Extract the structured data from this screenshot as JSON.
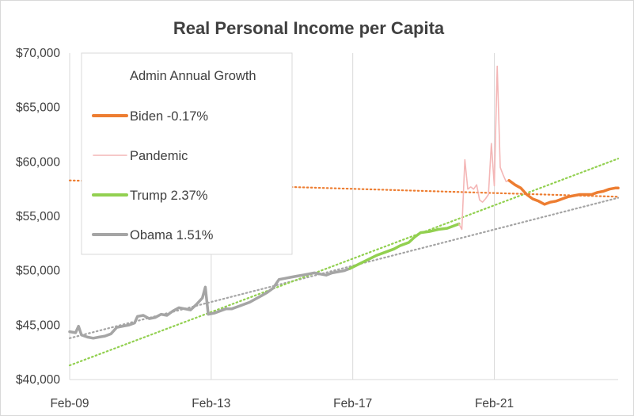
{
  "chart_data": {
    "type": "line",
    "title": "Real Personal Income per Capita",
    "xlabel": "",
    "ylabel": "",
    "x_axis": {
      "type": "date",
      "range": [
        "2009-02",
        "2024-08"
      ],
      "ticks": [
        "Feb-09",
        "Feb-13",
        "Feb-17",
        "Feb-21"
      ]
    },
    "y_axis": {
      "range": [
        40000,
        70000
      ],
      "step": 5000,
      "ticks": [
        "$40,000",
        "$45,000",
        "$50,000",
        "$55,000",
        "$60,000",
        "$65,000",
        "$70,000"
      ]
    },
    "grid": {
      "vertical": true,
      "horizontal": false
    },
    "legend": {
      "title": "Admin Annual Growth",
      "placement": "top-left",
      "entries": [
        "Biden -0.17%",
        "Pandemic",
        "Trump 2.37%",
        "Obama 1.51%"
      ]
    },
    "series": [
      {
        "name": "Obama 1.51%",
        "color": "#a5a5a5",
        "points": [
          [
            "2009-02",
            44400
          ],
          [
            "2009-04",
            44300
          ],
          [
            "2009-05",
            44900
          ],
          [
            "2009-06",
            44100
          ],
          [
            "2009-08",
            43900
          ],
          [
            "2009-10",
            43800
          ],
          [
            "2009-12",
            43900
          ],
          [
            "2010-02",
            44000
          ],
          [
            "2010-04",
            44200
          ],
          [
            "2010-06",
            44800
          ],
          [
            "2010-08",
            44900
          ],
          [
            "2010-10",
            45000
          ],
          [
            "2010-12",
            45200
          ],
          [
            "2011-01",
            45800
          ],
          [
            "2011-03",
            45900
          ],
          [
            "2011-05",
            45600
          ],
          [
            "2011-07",
            45700
          ],
          [
            "2011-09",
            46000
          ],
          [
            "2011-11",
            45900
          ],
          [
            "2012-01",
            46300
          ],
          [
            "2012-03",
            46600
          ],
          [
            "2012-05",
            46500
          ],
          [
            "2012-07",
            46400
          ],
          [
            "2012-09",
            46900
          ],
          [
            "2012-11",
            47500
          ],
          [
            "2012-12",
            48500
          ],
          [
            "2013-01",
            46000
          ],
          [
            "2013-03",
            46100
          ],
          [
            "2013-05",
            46300
          ],
          [
            "2013-07",
            46500
          ],
          [
            "2013-09",
            46500
          ],
          [
            "2013-11",
            46700
          ],
          [
            "2014-01",
            46900
          ],
          [
            "2014-03",
            47100
          ],
          [
            "2014-05",
            47400
          ],
          [
            "2014-07",
            47700
          ],
          [
            "2014-09",
            48000
          ],
          [
            "2014-11",
            48400
          ],
          [
            "2015-01",
            49200
          ],
          [
            "2015-03",
            49300
          ],
          [
            "2015-05",
            49400
          ],
          [
            "2015-07",
            49500
          ],
          [
            "2015-09",
            49600
          ],
          [
            "2015-11",
            49700
          ],
          [
            "2016-01",
            49800
          ],
          [
            "2016-03",
            49700
          ],
          [
            "2016-05",
            49600
          ],
          [
            "2016-07",
            49800
          ],
          [
            "2016-09",
            49900
          ],
          [
            "2016-11",
            50000
          ],
          [
            "2017-01",
            50200
          ]
        ]
      },
      {
        "name": "Trump 2.37%",
        "color": "#92d050",
        "points": [
          [
            "2017-01",
            50200
          ],
          [
            "2017-04",
            50600
          ],
          [
            "2017-07",
            51000
          ],
          [
            "2017-10",
            51400
          ],
          [
            "2018-01",
            51700
          ],
          [
            "2018-04",
            52000
          ],
          [
            "2018-06",
            52300
          ],
          [
            "2018-09",
            52600
          ],
          [
            "2018-11",
            53100
          ],
          [
            "2019-01",
            53500
          ],
          [
            "2019-04",
            53600
          ],
          [
            "2019-07",
            53800
          ],
          [
            "2019-10",
            53900
          ],
          [
            "2019-12",
            54100
          ],
          [
            "2020-02",
            54300
          ]
        ]
      },
      {
        "name": "Pandemic",
        "color": "#f4b6b6",
        "points": [
          [
            "2020-02",
            54300
          ],
          [
            "2020-03",
            53800
          ],
          [
            "2020-04",
            60200
          ],
          [
            "2020-05",
            57500
          ],
          [
            "2020-06",
            57700
          ],
          [
            "2020-07",
            57500
          ],
          [
            "2020-08",
            57900
          ],
          [
            "2020-09",
            56500
          ],
          [
            "2020-10",
            56300
          ],
          [
            "2020-11",
            56600
          ],
          [
            "2020-12",
            57000
          ],
          [
            "2021-01",
            61700
          ],
          [
            "2021-02",
            57800
          ],
          [
            "2021-03",
            68800
          ],
          [
            "2021-04",
            59500
          ],
          [
            "2021-05",
            58800
          ],
          [
            "2021-06",
            58200
          ],
          [
            "2021-07",
            58300
          ]
        ]
      },
      {
        "name": "Biden -0.17%",
        "color": "#ed7d31",
        "points": [
          [
            "2021-07",
            58300
          ],
          [
            "2021-09",
            57900
          ],
          [
            "2021-11",
            57600
          ],
          [
            "2022-01",
            57000
          ],
          [
            "2022-03",
            56600
          ],
          [
            "2022-05",
            56400
          ],
          [
            "2022-07",
            56100
          ],
          [
            "2022-09",
            56300
          ],
          [
            "2022-11",
            56400
          ],
          [
            "2023-01",
            56600
          ],
          [
            "2023-03",
            56800
          ],
          [
            "2023-05",
            56900
          ],
          [
            "2023-07",
            57000
          ],
          [
            "2023-09",
            57000
          ],
          [
            "2023-11",
            57000
          ],
          [
            "2024-01",
            57200
          ],
          [
            "2024-03",
            57300
          ],
          [
            "2024-05",
            57500
          ],
          [
            "2024-07",
            57600
          ],
          [
            "2024-08",
            57600
          ]
        ]
      }
    ],
    "trendlines": [
      {
        "of": "Obama 1.51%",
        "color": "#a5a5a5",
        "style": "dotted",
        "points": [
          [
            "2009-02",
            43800
          ],
          [
            "2024-08",
            56700
          ]
        ]
      },
      {
        "of": "Trump 2.37%",
        "color": "#92d050",
        "style": "dotted",
        "points": [
          [
            "2009-02",
            41300
          ],
          [
            "2024-08",
            60300
          ]
        ]
      },
      {
        "of": "Biden -0.17%",
        "color": "#ed7d31",
        "style": "dotted",
        "points": [
          [
            "2009-02",
            58300
          ],
          [
            "2024-08",
            56800
          ]
        ]
      }
    ]
  }
}
